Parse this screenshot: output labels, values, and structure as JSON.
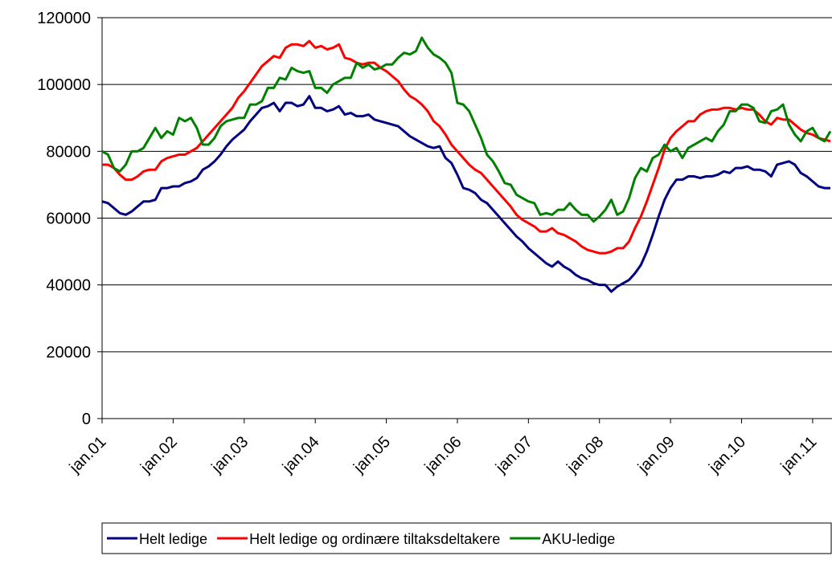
{
  "chart_data": {
    "type": "line",
    "categories": [
      "jan.01",
      null,
      null,
      null,
      null,
      null,
      null,
      null,
      null,
      null,
      null,
      null,
      "jan.02",
      null,
      null,
      null,
      null,
      null,
      null,
      null,
      null,
      null,
      null,
      null,
      "jan.03",
      null,
      null,
      null,
      null,
      null,
      null,
      null,
      null,
      null,
      null,
      null,
      "jan.04",
      null,
      null,
      null,
      null,
      null,
      null,
      null,
      null,
      null,
      null,
      null,
      "jan.05",
      null,
      null,
      null,
      null,
      null,
      null,
      null,
      null,
      null,
      null,
      null,
      "jan.06",
      null,
      null,
      null,
      null,
      null,
      null,
      null,
      null,
      null,
      null,
      null,
      "jan.07",
      null,
      null,
      null,
      null,
      null,
      null,
      null,
      null,
      null,
      null,
      null,
      "jan.08",
      null,
      null,
      null,
      null,
      null,
      null,
      null,
      null,
      null,
      null,
      null,
      "jan.09",
      null,
      null,
      null,
      null,
      null,
      null,
      null,
      null,
      null,
      null,
      null,
      "jan.10",
      null,
      null,
      null,
      null,
      null,
      null,
      null,
      null,
      null,
      null,
      null,
      "jan.11",
      null,
      null,
      null
    ],
    "series": [
      {
        "name": "Helt ledige",
        "color": "#000080",
        "values": [
          65000,
          64500,
          63000,
          61500,
          61000,
          62000,
          63500,
          65000,
          65000,
          65500,
          69000,
          69000,
          69500,
          69500,
          70500,
          71000,
          72000,
          74500,
          75500,
          77000,
          79000,
          81500,
          83500,
          85000,
          86500,
          89000,
          91000,
          93000,
          93500,
          94500,
          92000,
          94500,
          94500,
          93500,
          94000,
          96500,
          93000,
          93000,
          92000,
          92500,
          93500,
          91000,
          91500,
          90500,
          90500,
          91000,
          89500,
          89000,
          88500,
          88000,
          87500,
          86000,
          84500,
          83500,
          82500,
          81500,
          81000,
          81500,
          78000,
          76500,
          73000,
          69000,
          68500,
          67500,
          65500,
          64500,
          62500,
          60500,
          58500,
          56500,
          54500,
          53000,
          51000,
          49500,
          48000,
          46500,
          45500,
          47000,
          45500,
          44500,
          43000,
          42000,
          41500,
          40500,
          40000,
          40000,
          38000,
          39500,
          40500,
          41500,
          43500,
          46000,
          50000,
          55000,
          60500,
          65500,
          69000,
          71500,
          71500,
          72500,
          72500,
          72000,
          72500,
          72500,
          73000,
          74000,
          73500,
          75000,
          75000,
          75500,
          74500,
          74500,
          74000,
          72500,
          76000,
          76500,
          77000,
          76000,
          73500,
          72500,
          71000,
          69500,
          69000,
          69000
        ]
      },
      {
        "name": "Helt ledige og ordinære tiltaksdeltakere",
        "color": "#ff0000",
        "values": [
          76000,
          76000,
          75000,
          73000,
          71500,
          71500,
          72500,
          74000,
          74500,
          74500,
          77000,
          78000,
          78500,
          79000,
          79000,
          80000,
          81000,
          83000,
          85000,
          87000,
          89000,
          91000,
          93000,
          96000,
          98000,
          100500,
          103000,
          105500,
          107000,
          108500,
          108000,
          111000,
          112000,
          112000,
          111500,
          113000,
          111000,
          111500,
          110500,
          111000,
          112000,
          108000,
          107500,
          106500,
          106000,
          106500,
          106500,
          105000,
          104000,
          102500,
          101000,
          98500,
          96500,
          95500,
          94000,
          92000,
          89000,
          87500,
          85000,
          82000,
          80000,
          78000,
          76000,
          74500,
          73500,
          71500,
          69500,
          67500,
          65500,
          63500,
          61000,
          59500,
          58500,
          57500,
          56000,
          56000,
          57000,
          55500,
          55000,
          54000,
          53000,
          51500,
          50500,
          50000,
          49500,
          49500,
          50000,
          51000,
          51000,
          53000,
          57000,
          60500,
          65000,
          70000,
          75000,
          80500,
          84000,
          86000,
          87500,
          89000,
          89000,
          91000,
          92000,
          92500,
          92500,
          93000,
          93000,
          92500,
          93000,
          92500,
          92500,
          91000,
          89000,
          88000,
          90000,
          89500,
          89500,
          88000,
          86500,
          85500,
          85000,
          84000,
          83500,
          83000
        ]
      },
      {
        "name": "AKU-ledige",
        "color": "#008000",
        "values": [
          80000,
          79000,
          75000,
          74000,
          76000,
          80000,
          80000,
          81000,
          84000,
          87000,
          84000,
          86000,
          85000,
          90000,
          89000,
          90000,
          87000,
          82000,
          82000,
          84000,
          87500,
          89000,
          89500,
          90000,
          90000,
          94000,
          94000,
          95000,
          99000,
          99000,
          102000,
          101500,
          105000,
          104000,
          103500,
          104000,
          99000,
          99000,
          97500,
          100000,
          101000,
          102000,
          102000,
          106500,
          105000,
          106000,
          104500,
          105000,
          106000,
          106000,
          108000,
          109500,
          109000,
          110000,
          114000,
          111000,
          109000,
          108000,
          106500,
          103500,
          94500,
          94000,
          92000,
          88000,
          84000,
          79000,
          77000,
          74000,
          70500,
          70000,
          67000,
          66000,
          65000,
          64500,
          61000,
          61500,
          61000,
          62500,
          62500,
          64500,
          62500,
          61000,
          61000,
          59000,
          60500,
          62500,
          65500,
          61000,
          62000,
          66000,
          72000,
          75000,
          74000,
          78000,
          79000,
          82000,
          80000,
          81000,
          78000,
          81000,
          82000,
          83000,
          84000,
          83000,
          86000,
          88000,
          92000,
          92000,
          94000,
          94000,
          93000,
          89000,
          88500,
          92000,
          92500,
          94000,
          88000,
          85000,
          83000,
          86000,
          87000,
          84000,
          83000,
          86000
        ]
      }
    ],
    "ylim": [
      0,
      120000
    ],
    "yticks": [
      0,
      20000,
      40000,
      60000,
      80000,
      100000,
      120000
    ],
    "grid": true,
    "legend": "bottom"
  }
}
